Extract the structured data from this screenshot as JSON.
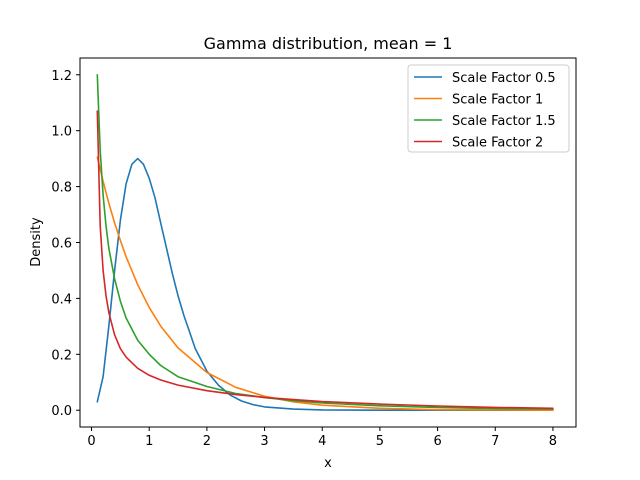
{
  "chart_data": {
    "type": "line",
    "title": "Gamma distribution, mean = 1",
    "xlabel": "x",
    "ylabel": "Density",
    "xlim": [
      -0.2,
      8.4
    ],
    "ylim": [
      -0.06,
      1.26
    ],
    "xticks": [
      0,
      1,
      2,
      3,
      4,
      5,
      6,
      7,
      8
    ],
    "xtick_labels": [
      "0",
      "1",
      "2",
      "3",
      "4",
      "5",
      "6",
      "7",
      "8"
    ],
    "yticks": [
      0.0,
      0.2,
      0.4,
      0.6,
      0.8,
      1.0,
      1.2
    ],
    "ytick_labels": [
      "0.0",
      "0.2",
      "0.4",
      "0.6",
      "0.8",
      "1.0",
      "1.2"
    ],
    "grid": false,
    "legend_position": "top-right",
    "series": [
      {
        "name": "Scale Factor 0.5",
        "color": "#1f77b4",
        "x": [
          0.1,
          0.2,
          0.3,
          0.4,
          0.5,
          0.6,
          0.7,
          0.8,
          0.9,
          1.0,
          1.1,
          1.2,
          1.3,
          1.4,
          1.5,
          1.6,
          1.7,
          1.8,
          1.9,
          2.0,
          2.2,
          2.4,
          2.6,
          2.8,
          3.0,
          3.5,
          4.0,
          5.0,
          6.0,
          7.0,
          8.0
        ],
        "y": [
          0.03,
          0.12,
          0.3,
          0.5,
          0.68,
          0.81,
          0.88,
          0.9,
          0.88,
          0.83,
          0.76,
          0.67,
          0.58,
          0.49,
          0.41,
          0.34,
          0.28,
          0.22,
          0.18,
          0.14,
          0.09,
          0.055,
          0.033,
          0.02,
          0.012,
          0.004,
          0.001,
          0.0,
          0.0,
          0.0,
          0.0
        ]
      },
      {
        "name": "Scale Factor 1",
        "color": "#ff7f0e",
        "x": [
          0.1,
          0.2,
          0.3,
          0.4,
          0.5,
          0.6,
          0.8,
          1.0,
          1.2,
          1.5,
          2.0,
          2.5,
          3.0,
          3.5,
          4.0,
          5.0,
          6.0,
          7.0,
          8.0
        ],
        "y": [
          0.905,
          0.819,
          0.741,
          0.67,
          0.607,
          0.549,
          0.449,
          0.368,
          0.301,
          0.223,
          0.135,
          0.082,
          0.05,
          0.03,
          0.018,
          0.007,
          0.002,
          0.001,
          0.0
        ]
      },
      {
        "name": "Scale Factor 1.5",
        "color": "#2ca02c",
        "x": [
          0.1,
          0.15,
          0.2,
          0.25,
          0.3,
          0.4,
          0.5,
          0.6,
          0.8,
          1.0,
          1.2,
          1.5,
          2.0,
          2.5,
          3.0,
          3.5,
          4.0,
          5.0,
          6.0,
          7.0,
          8.0
        ],
        "y": [
          1.2,
          0.93,
          0.77,
          0.66,
          0.58,
          0.47,
          0.39,
          0.33,
          0.25,
          0.2,
          0.16,
          0.12,
          0.085,
          0.06,
          0.045,
          0.034,
          0.026,
          0.016,
          0.01,
          0.006,
          0.004
        ]
      },
      {
        "name": "Scale Factor 2",
        "color": "#d62728",
        "x": [
          0.1,
          0.15,
          0.2,
          0.25,
          0.3,
          0.4,
          0.5,
          0.6,
          0.8,
          1.0,
          1.2,
          1.5,
          2.0,
          2.5,
          3.0,
          3.5,
          4.0,
          5.0,
          6.0,
          7.0,
          8.0
        ],
        "y": [
          1.07,
          0.66,
          0.5,
          0.41,
          0.35,
          0.27,
          0.22,
          0.19,
          0.15,
          0.125,
          0.108,
          0.09,
          0.07,
          0.056,
          0.046,
          0.038,
          0.031,
          0.022,
          0.015,
          0.01,
          0.007
        ]
      }
    ]
  }
}
